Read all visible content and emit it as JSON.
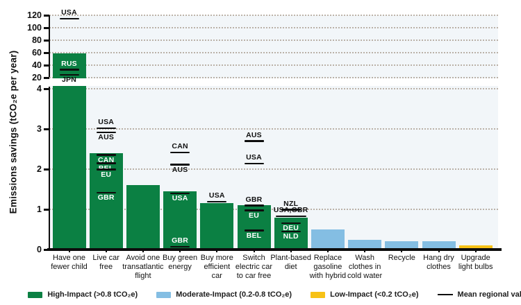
{
  "chart_data": {
    "type": "bar",
    "title": "",
    "ylabel": "Emissions savings (tCO₂e per year)",
    "xlabel": "",
    "grid": "horizontal dotted",
    "legend_position": "bottom",
    "broken_y_axis": {
      "upper": {
        "min": 20,
        "max": 120,
        "ticks": [
          120,
          100,
          80,
          60,
          40,
          20
        ]
      },
      "lower": {
        "min": 0,
        "max": 4,
        "ticks": [
          4,
          3,
          2,
          1,
          0
        ]
      }
    },
    "colors": {
      "high": "#0b8043",
      "moderate": "#84bee3",
      "low": "#f7c216",
      "mean_line": "#0d0d0d",
      "plot_bg": "#f2f6f9"
    },
    "legend": [
      {
        "key": "high",
        "swatch": "box",
        "label": "High-Impact (>0.8 tCO₂e)"
      },
      {
        "key": "moderate",
        "swatch": "box",
        "label": "Moderate-Impact (0.2-0.8 tCO₂e)"
      },
      {
        "key": "low",
        "swatch": "box",
        "label": "Low-Impact (<0.2 tCO₂e)"
      },
      {
        "key": "mean",
        "swatch": "line",
        "label": "Mean regional value"
      }
    ],
    "bars": [
      {
        "label": "Have one\nfewer child",
        "value": 58.6,
        "value_scale": "upper",
        "impact": "high",
        "markers": [
          {
            "region": "USA",
            "value": 115,
            "scale": "upper",
            "side": "above",
            "color": "black"
          },
          {
            "region": "RUS",
            "value": 33,
            "scale": "upper",
            "side": "above",
            "color": "white"
          },
          {
            "region": "JPN",
            "value": 24.5,
            "scale": "upper",
            "side": "below",
            "color": "black"
          }
        ]
      },
      {
        "label": "Live car\nfree",
        "value": 2.4,
        "impact": "high",
        "markers": [
          {
            "region": "USA",
            "value": 3.02,
            "side": "above",
            "color": "black"
          },
          {
            "region": "AUS",
            "value": 2.92,
            "side": "below",
            "color": "black"
          },
          {
            "region": "CAN",
            "value": 2.36,
            "side": "below",
            "color": "white"
          },
          {
            "region": "BEL",
            "value": 2.15,
            "side": "below",
            "color": "white"
          },
          {
            "region": "EU",
            "value": 2.0,
            "side": "below",
            "color": "white"
          },
          {
            "region": "GBR",
            "value": 1.42,
            "side": "below",
            "color": "white"
          }
        ]
      },
      {
        "label": "Avoid one\ntransatlantic\nflight",
        "value": 1.6,
        "impact": "high",
        "markers": []
      },
      {
        "label": "Buy green\nenergy",
        "value": 1.45,
        "impact": "high",
        "markers": [
          {
            "region": "CAN",
            "value": 2.42,
            "side": "above",
            "color": "black"
          },
          {
            "region": "AUS",
            "value": 2.12,
            "side": "below",
            "color": "black"
          },
          {
            "region": "USA",
            "value": 1.4,
            "side": "below",
            "color": "white"
          },
          {
            "region": "GBR",
            "value": 0.07,
            "side": "above",
            "color": "white"
          }
        ]
      },
      {
        "label": "Buy more\nefficient\ncar",
        "value": 1.15,
        "impact": "high",
        "markers": [
          {
            "region": "USA",
            "value": 1.19,
            "side": "above",
            "color": "black"
          }
        ]
      },
      {
        "label": "Switch\nelectric car\nto car free",
        "value": 1.1,
        "impact": "high",
        "markers": [
          {
            "region": "AUS",
            "value": 2.7,
            "side": "above",
            "color": "black"
          },
          {
            "region": "USA",
            "value": 2.14,
            "side": "above",
            "color": "black"
          },
          {
            "region": "GBR",
            "value": 1.1,
            "side": "above",
            "color": "black"
          },
          {
            "region": "EU",
            "value": 0.98,
            "side": "below",
            "color": "white"
          },
          {
            "region": "BEL",
            "value": 0.48,
            "side": "below",
            "color": "white"
          }
        ]
      },
      {
        "label": "Plant-based\ndiet",
        "value": 0.8,
        "impact": "high",
        "markers": [
          {
            "region": "NZL",
            "value": 1.0,
            "side": "above",
            "color": "black"
          },
          {
            "region": "USA,GBR",
            "value": 0.83,
            "side": "above",
            "color": "black",
            "line_w": 44
          },
          {
            "region": "DEU",
            "value": 0.66,
            "side": "below",
            "color": "white"
          },
          {
            "region": "NLD",
            "value": 0.45,
            "side": "below",
            "color": "white"
          }
        ]
      },
      {
        "label": "Replace\ngasoline\nwith hybrid",
        "value": 0.5,
        "impact": "moderate",
        "markers": []
      },
      {
        "label": "Wash\nclothes in\ncold water",
        "value": 0.25,
        "impact": "moderate",
        "markers": []
      },
      {
        "label": "Recycle",
        "value": 0.21,
        "impact": "moderate",
        "markers": []
      },
      {
        "label": "Hang dry\nclothes",
        "value": 0.21,
        "impact": "moderate",
        "markers": []
      },
      {
        "label": "Upgrade\nlight bulbs",
        "value": 0.1,
        "impact": "low",
        "markers": []
      }
    ]
  }
}
